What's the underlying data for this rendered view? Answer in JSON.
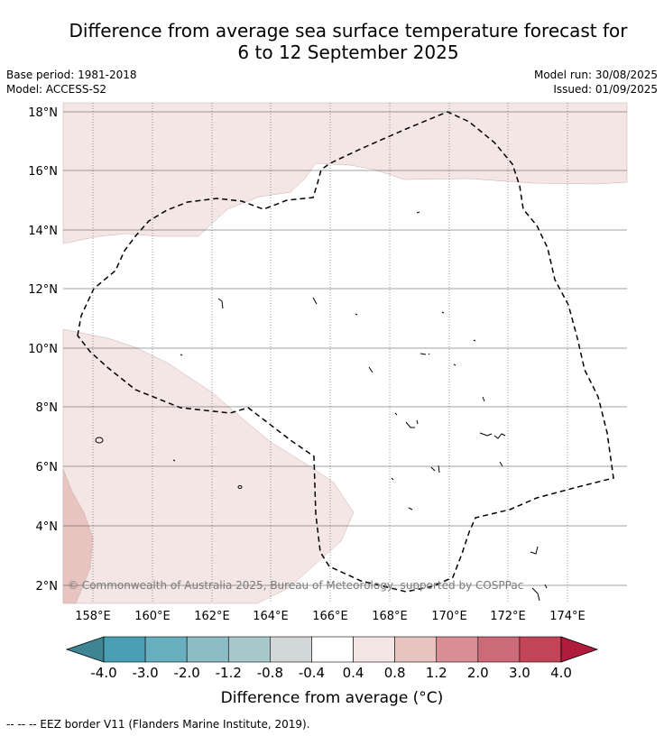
{
  "header": {
    "title_line1": "Difference from average sea surface temperature forecast for",
    "title_line2": "6 to 12 September 2025",
    "base_period": "Base period: 1981-2018",
    "model": "Model: ACCESS-S2",
    "model_run": "Model run: 30/08/2025",
    "issued": "Issued: 01/09/2025"
  },
  "map": {
    "lon_ticks": [
      "158°E",
      "160°E",
      "162°E",
      "164°E",
      "166°E",
      "168°E",
      "170°E",
      "172°E",
      "174°E"
    ],
    "lat_ticks": [
      "18°N",
      "16°N",
      "14°N",
      "12°N",
      "10°N",
      "8°N",
      "6°N",
      "4°N",
      "2°N"
    ],
    "copyright": "© Commonwealth of Australia 2025, Bureau of Meteorology, supported by COSPPac",
    "fill_colors": {
      "weak_warm": "#f4e6e5",
      "moderate_warm": "#e7c4c0"
    }
  },
  "colorbar": {
    "tick_labels": [
      "-4.0",
      "-3.0",
      "-2.0",
      "-1.2",
      "-0.8",
      "-0.4",
      "0.4",
      "0.8",
      "1.2",
      "2.0",
      "3.0",
      "4.0"
    ],
    "bins": [
      {
        "color": "#4a9fb2"
      },
      {
        "color": "#6aafbf"
      },
      {
        "color": "#8cbcc6"
      },
      {
        "color": "#a8c7cb"
      },
      {
        "color": "#d2d7d8"
      },
      {
        "color": "#ffffff"
      },
      {
        "color": "#f4e6e5"
      },
      {
        "color": "#e7c4c0"
      },
      {
        "color": "#da8f96"
      },
      {
        "color": "#cd6a77"
      },
      {
        "color": "#c24456"
      }
    ],
    "low_extend_color": "#3f8593",
    "high_extend_color": "#b01c3b",
    "label": "Difference from average (°C)"
  },
  "footnote": "--  --  -- EEZ border V11 (Flanders Marine Institute, 2019)."
}
